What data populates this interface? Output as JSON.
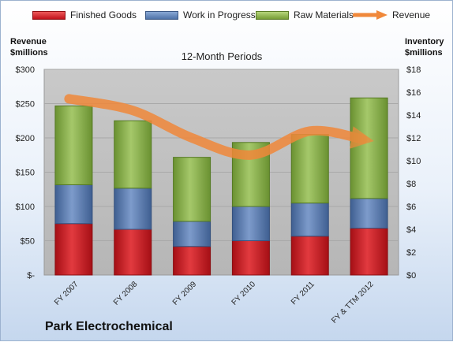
{
  "legend": {
    "finished_goods": "Finished Goods",
    "work_in_progress": "Work in Progress",
    "raw_materials": "Raw Materials",
    "revenue": "Revenue"
  },
  "left_axis_title": [
    "Revenue",
    "$millions"
  ],
  "right_axis_title": [
    "Inventory",
    "$millions"
  ],
  "subtitle": "12-Month Periods",
  "company": "Park Electrochemical",
  "colors": {
    "finished_goods": "#c8161d",
    "work_in_progress": "#5577aa",
    "raw_materials": "#8db04a",
    "revenue": "#f0883a",
    "plot_background": "#bfbfbf"
  },
  "chart_data": {
    "type": "bar",
    "stacked": true,
    "categories": [
      "FY 2007",
      "FY 2008",
      "FY 2009",
      "FY 2010",
      "FY 2011",
      "FY & TTM 2012"
    ],
    "series": [
      {
        "name": "Finished Goods",
        "axis": "right",
        "values": [
          4.5,
          4.0,
          2.5,
          3.0,
          3.4,
          4.1
        ]
      },
      {
        "name": "Work in Progress",
        "axis": "right",
        "values": [
          3.4,
          3.6,
          2.2,
          3.0,
          2.9,
          2.6
        ]
      },
      {
        "name": "Raw Materials",
        "axis": "right",
        "values": [
          6.9,
          5.9,
          5.6,
          5.6,
          6.0,
          8.8
        ]
      },
      {
        "name": "Revenue",
        "type": "line",
        "axis": "left",
        "values": [
          257,
          240,
          200,
          175,
          210,
          198
        ]
      }
    ],
    "left_axis": {
      "ylim": [
        0,
        300
      ],
      "ticks": [
        "$-",
        "$50",
        "$100",
        "$150",
        "$200",
        "$250",
        "$300"
      ]
    },
    "right_axis": {
      "ylim": [
        0,
        18
      ],
      "ticks": [
        "$0",
        "$2",
        "$4",
        "$6",
        "$8",
        "$10",
        "$12",
        "$14",
        "$16",
        "$18"
      ]
    },
    "grid": true,
    "legend_position": "top"
  }
}
